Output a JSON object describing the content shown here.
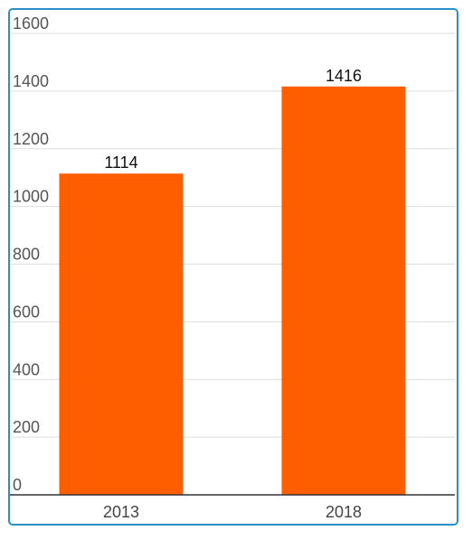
{
  "chart_data": {
    "type": "bar",
    "categories": [
      "2013",
      "2018"
    ],
    "values": [
      1114,
      1416
    ],
    "data_labels": [
      "1114",
      "1416"
    ],
    "yticks": [
      "0",
      "200",
      "400",
      "600",
      "800",
      "1000",
      "1200",
      "1400",
      "1600"
    ],
    "ylim": [
      0,
      1600
    ],
    "grid": true,
    "legend": "none",
    "title": "",
    "xlabel": "",
    "ylabel": "",
    "colors": {
      "bar": "#ff5e00",
      "grid": "#dddddd",
      "axis": "#333333",
      "frame": "#2a8fc5"
    }
  }
}
